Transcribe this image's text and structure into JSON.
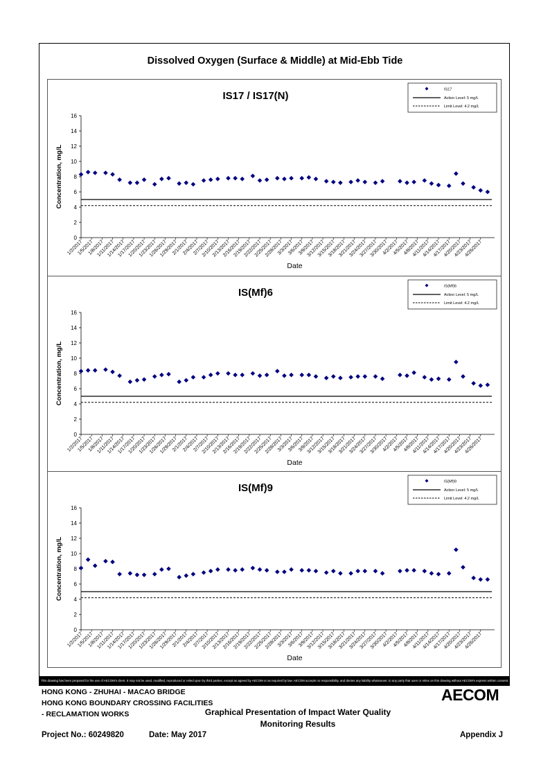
{
  "page_title": "Dissolved Oxygen (Surface & Middle) at Mid-Ebb Tide",
  "disclaimer": "This drawing has been prepared for the use of AECOM's client. It may not be used, modified, reproduced or relied upon by third parties, except as agreed by AECOM or as required by law. AECOM accepts no responsibility, and denies any liability whatsoever, to any party that uses or relies on this drawing without AECOM's express written consent.",
  "footer": {
    "line1": "HONG KONG - ZHUHAI - MACAO BRIDGE",
    "line2": "HONG KONG BOUNDARY CROSSING FACILITIES",
    "line3": "- RECLAMATION WORKS",
    "center_line1": "Graphical Presentation of Impact Water Quality",
    "center_line2": "Monitoring Results",
    "project": "Project No.: 60249820",
    "date": "Date: May 2017",
    "appendix": "Appendix J",
    "logo": "AECOM"
  },
  "colors": {
    "marker": "#000080",
    "line": "#000000"
  },
  "chart_data": [
    {
      "type": "scatter",
      "title": "IS17 / IS17(N)",
      "xlabel": "Date",
      "ylabel": "Concentration, mg/L",
      "ylim": [
        0,
        16
      ],
      "yticks": [
        0,
        2,
        4,
        6,
        8,
        10,
        12,
        14,
        16
      ],
      "xticks": [
        "1/2/2017",
        "1/5/2017",
        "1/8/2017",
        "1/11/2017",
        "1/14/2017",
        "1/17/2017",
        "1/20/2017",
        "1/23/2017",
        "1/26/2017",
        "1/29/2017",
        "2/1/2017",
        "2/4/2017",
        "2/7/2017",
        "2/10/2017",
        "2/13/2017",
        "2/16/2017",
        "2/19/2017",
        "2/22/2017",
        "2/25/2017",
        "2/28/2017",
        "3/3/2017",
        "3/6/2017",
        "3/9/2017",
        "3/12/2017",
        "3/15/2017",
        "3/18/2017",
        "3/21/2017",
        "3/24/2017",
        "3/27/2017",
        "3/30/2017",
        "4/2/2017",
        "4/5/2017",
        "4/8/2017",
        "4/11/2017",
        "4/14/2017",
        "4/17/2017",
        "4/20/2017",
        "4/23/2017",
        "4/26/2017"
      ],
      "legend": {
        "position": "top-right",
        "series": "IS17",
        "action": "Action Level: 5 mg/L",
        "limit": "Limit Level: 4.2 mg/L"
      },
      "action_level": 5,
      "limit_level": 4.2,
      "x": [
        "2017-01-02",
        "2017-01-03",
        "2017-01-04",
        "2017-01-05",
        "2017-01-06",
        "2017-01-07",
        "2017-01-08",
        "2017-01-09",
        "2017-01-10",
        "2017-01-11",
        "2017-01-12",
        "2017-01-13",
        "2017-01-14",
        "2017-01-15",
        "2017-01-16",
        "2017-01-17",
        "2017-01-18",
        "2017-01-19",
        "2017-01-20",
        "2017-01-21",
        "2017-01-22",
        "2017-01-23",
        "2017-01-24",
        "2017-01-25",
        "2017-01-26",
        "2017-01-27",
        "2017-01-28",
        "2017-01-29",
        "2017-01-30",
        "2017-01-31",
        "2017-02-01",
        "2017-02-02",
        "2017-02-03",
        "2017-02-04",
        "2017-02-05",
        "2017-02-06",
        "2017-02-07",
        "2017-02-08",
        "2017-02-09",
        "2017-02-10",
        "2017-02-11",
        "2017-02-12",
        "2017-02-13",
        "2017-02-14",
        "2017-02-15",
        "2017-02-16",
        "2017-02-17",
        "2017-02-18",
        "2017-02-19",
        "2017-02-20",
        "2017-02-21",
        "2017-02-22",
        "2017-02-23",
        "2017-02-24",
        "2017-02-25",
        "2017-02-26",
        "2017-02-27",
        "2017-02-28",
        "2017-03-01",
        "2017-03-02",
        "2017-03-03",
        "2017-03-04",
        "2017-03-05",
        "2017-03-06",
        "2017-03-07",
        "2017-03-08",
        "2017-03-09",
        "2017-03-10",
        "2017-03-11",
        "2017-03-12",
        "2017-03-13",
        "2017-03-14",
        "2017-03-15",
        "2017-03-16",
        "2017-03-17",
        "2017-03-18",
        "2017-03-19",
        "2017-03-20",
        "2017-03-21",
        "2017-03-22",
        "2017-03-23",
        "2017-03-24",
        "2017-03-25",
        "2017-03-26",
        "2017-03-27",
        "2017-03-28",
        "2017-03-29",
        "2017-03-30",
        "2017-03-31",
        "2017-04-01",
        "2017-04-02",
        "2017-04-03",
        "2017-04-04",
        "2017-04-05",
        "2017-04-06",
        "2017-04-07",
        "2017-04-08",
        "2017-04-09",
        "2017-04-10",
        "2017-04-11",
        "2017-04-12",
        "2017-04-13",
        "2017-04-14",
        "2017-04-15",
        "2017-04-16",
        "2017-04-17",
        "2017-04-18",
        "2017-04-19",
        "2017-04-20",
        "2017-04-21",
        "2017-04-22",
        "2017-04-23",
        "2017-04-24",
        "2017-04-25",
        "2017-04-26",
        "2017-04-27",
        "2017-04-28",
        "2017-04-29",
        "2017-04-30"
      ],
      "points": [
        [
          "2017-01-02",
          8.3
        ],
        [
          "2017-01-04",
          8.6
        ],
        [
          "2017-01-06",
          8.5
        ],
        [
          "2017-01-09",
          8.5
        ],
        [
          "2017-01-11",
          8.3
        ],
        [
          "2017-01-13",
          7.6
        ],
        [
          "2017-01-16",
          7.2
        ],
        [
          "2017-01-18",
          7.2
        ],
        [
          "2017-01-20",
          7.6
        ],
        [
          "2017-01-23",
          7.0
        ],
        [
          "2017-01-25",
          7.7
        ],
        [
          "2017-01-27",
          7.8
        ],
        [
          "2017-01-30",
          7.1
        ],
        [
          "2017-02-01",
          7.2
        ],
        [
          "2017-02-03",
          7.0
        ],
        [
          "2017-02-06",
          7.5
        ],
        [
          "2017-02-08",
          7.6
        ],
        [
          "2017-02-10",
          7.7
        ],
        [
          "2017-02-13",
          7.8
        ],
        [
          "2017-02-15",
          7.8
        ],
        [
          "2017-02-17",
          7.7
        ],
        [
          "2017-02-20",
          8.1
        ],
        [
          "2017-02-22",
          7.5
        ],
        [
          "2017-02-24",
          7.6
        ],
        [
          "2017-02-27",
          7.8
        ],
        [
          "2017-03-01",
          7.7
        ],
        [
          "2017-03-03",
          7.8
        ],
        [
          "2017-03-06",
          7.8
        ],
        [
          "2017-03-08",
          7.9
        ],
        [
          "2017-03-10",
          7.7
        ],
        [
          "2017-03-13",
          7.4
        ],
        [
          "2017-03-15",
          7.3
        ],
        [
          "2017-03-17",
          7.2
        ],
        [
          "2017-03-20",
          7.3
        ],
        [
          "2017-03-22",
          7.5
        ],
        [
          "2017-03-24",
          7.3
        ],
        [
          "2017-03-27",
          7.2
        ],
        [
          "2017-03-29",
          7.4
        ],
        [
          "2017-04-03",
          7.4
        ],
        [
          "2017-04-05",
          7.2
        ],
        [
          "2017-04-07",
          7.3
        ],
        [
          "2017-04-10",
          7.5
        ],
        [
          "2017-04-12",
          7.1
        ],
        [
          "2017-04-14",
          6.9
        ],
        [
          "2017-04-17",
          6.8
        ],
        [
          "2017-04-19",
          8.4
        ],
        [
          "2017-04-21",
          7.1
        ],
        [
          "2017-04-24",
          6.6
        ],
        [
          "2017-04-26",
          6.2
        ],
        [
          "2017-04-28",
          6.0
        ]
      ]
    },
    {
      "type": "scatter",
      "title": "IS(Mf)6",
      "xlabel": "Date",
      "ylabel": "Concentration, mg/L",
      "ylim": [
        0,
        16
      ],
      "yticks": [
        0,
        2,
        4,
        6,
        8,
        10,
        12,
        14,
        16
      ],
      "xticks": [
        "1/2/2017",
        "1/5/2017",
        "1/8/2017",
        "1/11/2017",
        "1/14/2017",
        "1/17/2017",
        "1/20/2017",
        "1/23/2017",
        "1/26/2017",
        "1/29/2017",
        "2/1/2017",
        "2/4/2017",
        "2/7/2017",
        "2/10/2017",
        "2/13/2017",
        "2/16/2017",
        "2/19/2017",
        "2/22/2017",
        "2/25/2017",
        "2/28/2017",
        "3/3/2017",
        "3/6/2017",
        "3/9/2017",
        "3/12/2017",
        "3/15/2017",
        "3/18/2017",
        "3/21/2017",
        "3/24/2017",
        "3/27/2017",
        "3/30/2017",
        "4/2/2017",
        "4/5/2017",
        "4/8/2017",
        "4/11/2017",
        "4/14/2017",
        "4/17/2017",
        "4/20/2017",
        "4/23/2017",
        "4/26/2017"
      ],
      "legend": {
        "position": "top-right",
        "series": "IS(Mf)6",
        "action": "Action Level: 5 mg/L",
        "limit": "Limit Level: 4.2 mg/L"
      },
      "action_level": 5,
      "limit_level": 4.2,
      "points": [
        [
          "2017-01-02",
          8.3
        ],
        [
          "2017-01-04",
          8.4
        ],
        [
          "2017-01-06",
          8.4
        ],
        [
          "2017-01-09",
          8.5
        ],
        [
          "2017-01-11",
          8.2
        ],
        [
          "2017-01-13",
          7.7
        ],
        [
          "2017-01-16",
          6.9
        ],
        [
          "2017-01-18",
          7.1
        ],
        [
          "2017-01-20",
          7.2
        ],
        [
          "2017-01-23",
          7.6
        ],
        [
          "2017-01-25",
          7.8
        ],
        [
          "2017-01-27",
          7.9
        ],
        [
          "2017-01-30",
          6.9
        ],
        [
          "2017-02-01",
          7.1
        ],
        [
          "2017-02-03",
          7.5
        ],
        [
          "2017-02-06",
          7.5
        ],
        [
          "2017-02-08",
          7.8
        ],
        [
          "2017-02-10",
          8.0
        ],
        [
          "2017-02-13",
          8.0
        ],
        [
          "2017-02-15",
          7.8
        ],
        [
          "2017-02-17",
          7.8
        ],
        [
          "2017-02-20",
          8.0
        ],
        [
          "2017-02-22",
          7.7
        ],
        [
          "2017-02-24",
          7.8
        ],
        [
          "2017-02-27",
          8.3
        ],
        [
          "2017-03-01",
          7.7
        ],
        [
          "2017-03-03",
          7.8
        ],
        [
          "2017-03-06",
          7.8
        ],
        [
          "2017-03-08",
          7.8
        ],
        [
          "2017-03-10",
          7.6
        ],
        [
          "2017-03-13",
          7.4
        ],
        [
          "2017-03-15",
          7.6
        ],
        [
          "2017-03-17",
          7.4
        ],
        [
          "2017-03-20",
          7.5
        ],
        [
          "2017-03-22",
          7.6
        ],
        [
          "2017-03-24",
          7.6
        ],
        [
          "2017-03-27",
          7.6
        ],
        [
          "2017-03-29",
          7.3
        ],
        [
          "2017-04-03",
          7.8
        ],
        [
          "2017-04-05",
          7.7
        ],
        [
          "2017-04-07",
          8.1
        ],
        [
          "2017-04-10",
          7.5
        ],
        [
          "2017-04-12",
          7.2
        ],
        [
          "2017-04-14",
          7.3
        ],
        [
          "2017-04-17",
          7.2
        ],
        [
          "2017-04-19",
          9.5
        ],
        [
          "2017-04-21",
          7.6
        ],
        [
          "2017-04-24",
          6.7
        ],
        [
          "2017-04-26",
          6.4
        ],
        [
          "2017-04-28",
          6.5
        ]
      ]
    },
    {
      "type": "scatter",
      "title": "IS(Mf)9",
      "xlabel": "Date",
      "ylabel": "Concentration, mg/L",
      "ylim": [
        0,
        16
      ],
      "yticks": [
        0,
        2,
        4,
        6,
        8,
        10,
        12,
        14,
        16
      ],
      "xticks": [
        "1/2/2017",
        "1/5/2017",
        "1/8/2017",
        "1/11/2017",
        "1/14/2017",
        "1/17/2017",
        "1/20/2017",
        "1/23/2017",
        "1/26/2017",
        "1/29/2017",
        "2/1/2017",
        "2/4/2017",
        "2/7/2017",
        "2/10/2017",
        "2/13/2017",
        "2/16/2017",
        "2/19/2017",
        "2/22/2017",
        "2/25/2017",
        "2/28/2017",
        "3/3/2017",
        "3/6/2017",
        "3/9/2017",
        "3/12/2017",
        "3/15/2017",
        "3/18/2017",
        "3/21/2017",
        "3/24/2017",
        "3/27/2017",
        "3/30/2017",
        "4/2/2017",
        "4/5/2017",
        "4/8/2017",
        "4/11/2017",
        "4/14/2017",
        "4/17/2017",
        "4/20/2017",
        "4/23/2017",
        "4/26/2017"
      ],
      "legend": {
        "position": "top-right",
        "series": "IS(Mf)9",
        "action": "Action Level: 5 mg/L",
        "limit": "Limit Level: 4.2 mg/L"
      },
      "action_level": 5,
      "limit_level": 4.2,
      "points": [
        [
          "2017-01-02",
          8.1
        ],
        [
          "2017-01-04",
          9.2
        ],
        [
          "2017-01-06",
          8.4
        ],
        [
          "2017-01-09",
          9.0
        ],
        [
          "2017-01-11",
          8.9
        ],
        [
          "2017-01-13",
          7.3
        ],
        [
          "2017-01-16",
          7.4
        ],
        [
          "2017-01-18",
          7.2
        ],
        [
          "2017-01-20",
          7.2
        ],
        [
          "2017-01-23",
          7.3
        ],
        [
          "2017-01-25",
          7.9
        ],
        [
          "2017-01-27",
          8.0
        ],
        [
          "2017-01-30",
          6.9
        ],
        [
          "2017-02-01",
          7.1
        ],
        [
          "2017-02-03",
          7.3
        ],
        [
          "2017-02-06",
          7.5
        ],
        [
          "2017-02-08",
          7.7
        ],
        [
          "2017-02-10",
          7.9
        ],
        [
          "2017-02-13",
          7.9
        ],
        [
          "2017-02-15",
          7.8
        ],
        [
          "2017-02-17",
          7.9
        ],
        [
          "2017-02-20",
          8.1
        ],
        [
          "2017-02-22",
          7.9
        ],
        [
          "2017-02-24",
          7.8
        ],
        [
          "2017-02-27",
          7.6
        ],
        [
          "2017-03-01",
          7.6
        ],
        [
          "2017-03-03",
          7.9
        ],
        [
          "2017-03-06",
          7.8
        ],
        [
          "2017-03-08",
          7.8
        ],
        [
          "2017-03-10",
          7.7
        ],
        [
          "2017-03-13",
          7.5
        ],
        [
          "2017-03-15",
          7.7
        ],
        [
          "2017-03-17",
          7.4
        ],
        [
          "2017-03-20",
          7.4
        ],
        [
          "2017-03-22",
          7.7
        ],
        [
          "2017-03-24",
          7.7
        ],
        [
          "2017-03-27",
          7.7
        ],
        [
          "2017-03-29",
          7.4
        ],
        [
          "2017-04-03",
          7.7
        ],
        [
          "2017-04-05",
          7.8
        ],
        [
          "2017-04-07",
          7.8
        ],
        [
          "2017-04-10",
          7.7
        ],
        [
          "2017-04-12",
          7.4
        ],
        [
          "2017-04-14",
          7.3
        ],
        [
          "2017-04-17",
          7.4
        ],
        [
          "2017-04-19",
          10.5
        ],
        [
          "2017-04-21",
          8.2
        ],
        [
          "2017-04-24",
          6.8
        ],
        [
          "2017-04-26",
          6.6
        ],
        [
          "2017-04-28",
          6.6
        ]
      ]
    }
  ]
}
